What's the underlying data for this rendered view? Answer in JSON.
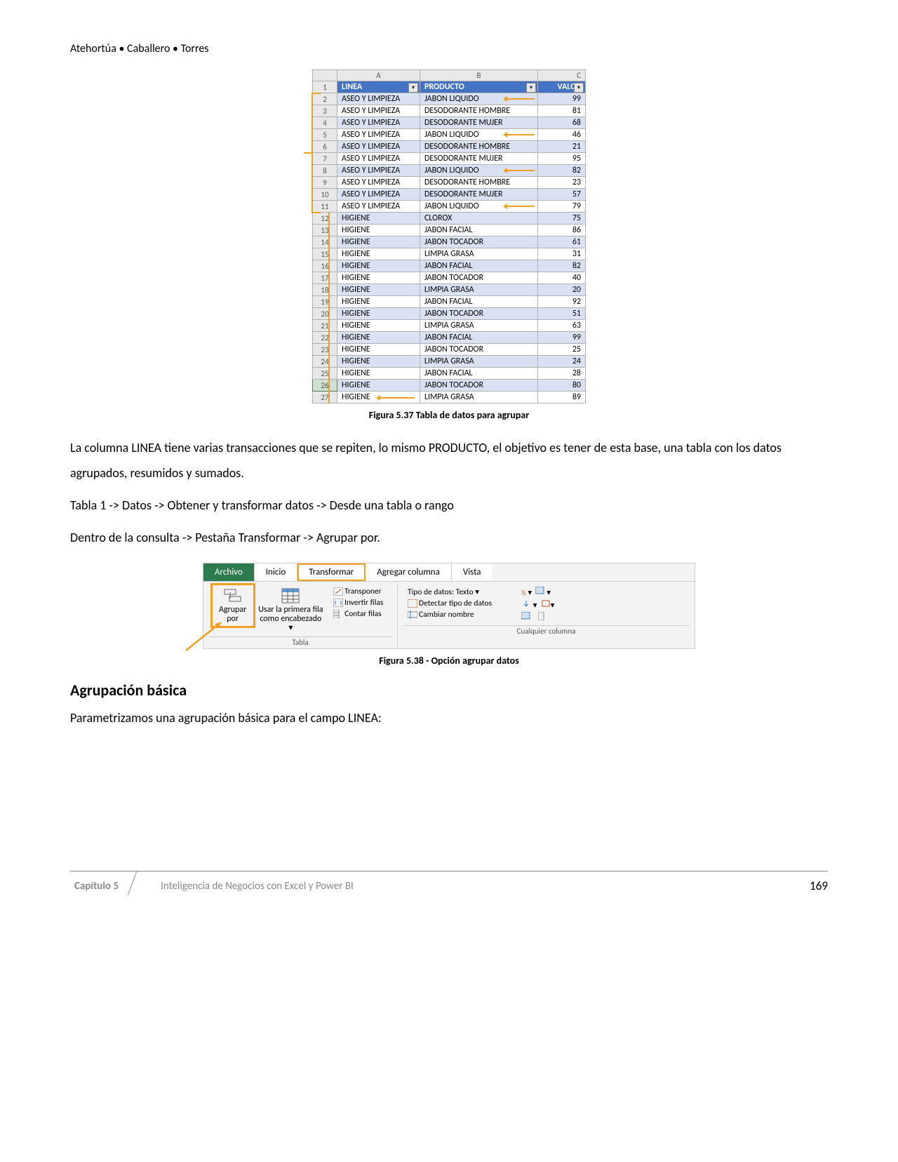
{
  "authors": "Atehortúa • Caballero • Torres",
  "excel": {
    "col_letters": [
      "A",
      "B",
      "C"
    ],
    "headers": [
      "LINEA",
      "PRODUCTO",
      "VALOR"
    ],
    "rows": [
      {
        "n": 2,
        "linea": "ASEO Y LIMPIEZA",
        "prod": "JABON LIQUIDO",
        "val": 99,
        "arrow": true,
        "band": "a"
      },
      {
        "n": 3,
        "linea": "ASEO Y LIMPIEZA",
        "prod": "DESODORANTE HOMBRE",
        "val": 81,
        "band": "b"
      },
      {
        "n": 4,
        "linea": "ASEO Y LIMPIEZA",
        "prod": "DESODORANTE MUJER",
        "val": 68,
        "band": "a"
      },
      {
        "n": 5,
        "linea": "ASEO Y LIMPIEZA",
        "prod": "JABON LIQUIDO",
        "val": 46,
        "arrow": true,
        "band": "b"
      },
      {
        "n": 6,
        "linea": "ASEO Y LIMPIEZA",
        "prod": "DESODORANTE HOMBRE",
        "val": 21,
        "band": "a"
      },
      {
        "n": 7,
        "linea": "ASEO Y LIMPIEZA",
        "prod": "DESODORANTE MUJER",
        "val": 95,
        "band": "b"
      },
      {
        "n": 8,
        "linea": "ASEO Y LIMPIEZA",
        "prod": "JABON LIQUIDO",
        "val": 82,
        "arrow": true,
        "band": "a"
      },
      {
        "n": 9,
        "linea": "ASEO Y LIMPIEZA",
        "prod": "DESODORANTE HOMBRE",
        "val": 23,
        "band": "b"
      },
      {
        "n": 10,
        "linea": "ASEO Y LIMPIEZA",
        "prod": "DESODORANTE MUJER",
        "val": 57,
        "band": "a"
      },
      {
        "n": 11,
        "linea": "ASEO Y LIMPIEZA",
        "prod": "JABON LIQUIDO",
        "val": 79,
        "arrow": true,
        "band": "b"
      },
      {
        "n": 12,
        "linea": "HIGIENE",
        "prod": "CLOROX",
        "val": 75,
        "band": "a"
      },
      {
        "n": 13,
        "linea": "HIGIENE",
        "prod": "JABON FACIAL",
        "val": 86,
        "band": "b"
      },
      {
        "n": 14,
        "linea": "HIGIENE",
        "prod": "JABON TOCADOR",
        "val": 61,
        "band": "a"
      },
      {
        "n": 15,
        "linea": "HIGIENE",
        "prod": "LIMPIA GRASA",
        "val": 31,
        "band": "b"
      },
      {
        "n": 16,
        "linea": "HIGIENE",
        "prod": "JABON FACIAL",
        "val": 82,
        "band": "a"
      },
      {
        "n": 17,
        "linea": "HIGIENE",
        "prod": "JABON TOCADOR",
        "val": 40,
        "band": "b"
      },
      {
        "n": 18,
        "linea": "HIGIENE",
        "prod": "LIMPIA GRASA",
        "val": 20,
        "band": "a"
      },
      {
        "n": 19,
        "linea": "HIGIENE",
        "prod": "JABON FACIAL",
        "val": 92,
        "band": "b"
      },
      {
        "n": 20,
        "linea": "HIGIENE",
        "prod": "JABON TOCADOR",
        "val": 51,
        "band": "a"
      },
      {
        "n": 21,
        "linea": "HIGIENE",
        "prod": "LIMPIA GRASA",
        "val": 63,
        "band": "b"
      },
      {
        "n": 22,
        "linea": "HIGIENE",
        "prod": "JABON FACIAL",
        "val": 99,
        "band": "a"
      },
      {
        "n": 23,
        "linea": "HIGIENE",
        "prod": "JABON TOCADOR",
        "val": 25,
        "band": "b"
      },
      {
        "n": 24,
        "linea": "HIGIENE",
        "prod": "LIMPIA GRASA",
        "val": 24,
        "band": "a"
      },
      {
        "n": 25,
        "linea": "HIGIENE",
        "prod": "JABON FACIAL",
        "val": 28,
        "band": "b"
      },
      {
        "n": 26,
        "linea": "HIGIENE",
        "prod": "JABON TOCADOR",
        "val": 80,
        "band": "a",
        "sel": true
      },
      {
        "n": 27,
        "linea": "HIGIENE",
        "prod": "LIMPIA GRASA",
        "val": 89,
        "band": "b",
        "arrow_left": true
      }
    ]
  },
  "fig537": "Figura 5.37  Tabla de datos para agrupar",
  "para1": "La columna LINEA tiene varias transacciones que se repiten, lo mismo PRODUCTO, el objetivo es tener de esta base, una tabla con los datos agrupados, resumidos y sumados.",
  "para2": "Tabla 1 -> Datos -> Obtener y transformar datos -> Desde una tabla o rango",
  "para3": "Dentro de la consulta -> Pestaña Transformar -> Agrupar por.",
  "ribbon": {
    "tabs": {
      "archivo": "Archivo",
      "inicio": "Inicio",
      "transformar": "Transformar",
      "agregar": "Agregar columna",
      "vista": "Vista"
    },
    "agrupar": "Agrupar por",
    "primera": "Usar la primera fila como encabezado ▾",
    "transponer": "Transponer",
    "invertir": "Invertir filas",
    "contar": "Contar filas",
    "tipo": "Tipo de datos: Texto ▾",
    "detectar": "Detectar tipo de datos",
    "cambiar": "Cambiar nombre",
    "grp_tabla": "Tabla",
    "grp_col": "Cualquier columna"
  },
  "fig538": "Figura 5.38 -  Opción agrupar datos",
  "section": "Agrupación básica",
  "para4": "Parametrizamos una agrupación básica para el campo LINEA:",
  "footer": {
    "chap": "Capítulo 5",
    "title": "Inteligencia de Negocios con Excel y Power BI",
    "page": "169"
  }
}
